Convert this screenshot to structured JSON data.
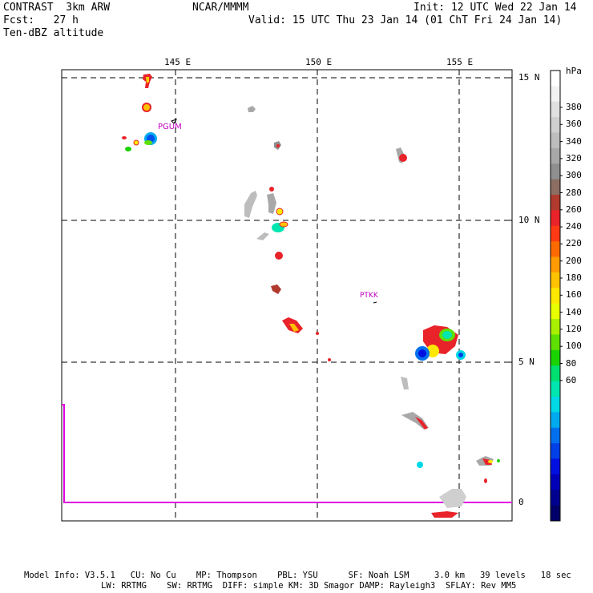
{
  "header": {
    "left_line1": "CONTRAST  3km ARW",
    "left_line2": "Fcst:   27 h",
    "left_line3": "Ten-dBZ altitude",
    "center": "NCAR/MMMM",
    "right_line1": "Init: 12 UTC Wed 22 Jan 14",
    "right_line2": "Valid: 15 UTC Thu 23 Jan 14 (01 ChT Fri 24 Jan 14)"
  },
  "map": {
    "lon_labels": [
      "145 E",
      "150 E",
      "155 E"
    ],
    "lat_labels": [
      "15 N",
      "10 N",
      "5 N",
      "0"
    ],
    "stations": [
      {
        "name": "PGUM"
      },
      {
        "name": "PTKK"
      }
    ],
    "colorbar": {
      "unit": "hPa",
      "labels": [
        "380",
        "360",
        "340",
        "320",
        "300",
        "280",
        "260",
        "240",
        "220",
        "200",
        "180",
        "160",
        "140",
        "120",
        "100",
        "80",
        "60"
      ],
      "colors": [
        "#ffffff",
        "#f2f2f2",
        "#e0e0e0",
        "#cfcfcf",
        "#bdbdbd",
        "#a8a8a8",
        "#8f8f8f",
        "#8c6e63",
        "#b03a2e",
        "#e8232a",
        "#ff3a14",
        "#ff6a00",
        "#ff9a00",
        "#ffc200",
        "#ffe800",
        "#e8ff00",
        "#a8f000",
        "#5ee000",
        "#19d200",
        "#00e070",
        "#00e6b0",
        "#00d8e6",
        "#00aaee",
        "#0070ee",
        "#0040e8",
        "#0010e0",
        "#0000b8",
        "#000090",
        "#000068"
      ]
    }
  },
  "footer": {
    "line1": "Model Info: V3.5.1   CU: No Cu    MP: Thompson    PBL: YSU      SF: Noah LSM     3.0 km   39 levels   18 sec",
    "line2": "LW: RRTMG    SW: RRTMG  DIFF: simple KM: 3D Smagor DAMP: Rayleigh3  SFLAY: Rev MM5"
  }
}
